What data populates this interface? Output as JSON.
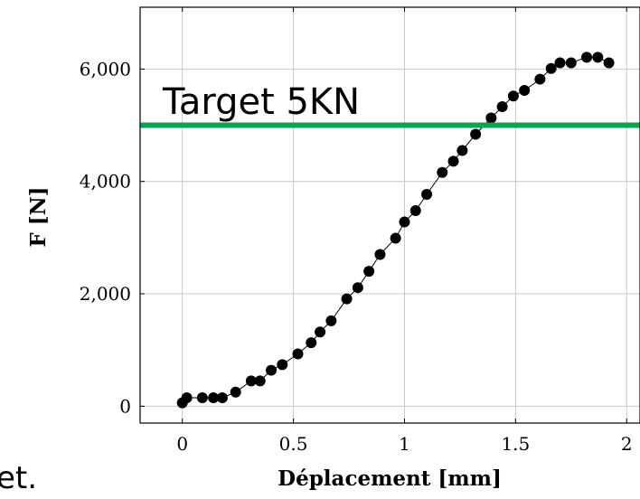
{
  "chart_data": {
    "type": "scatter",
    "xlabel": "Déplacement [mm]",
    "ylabel": "F [N]",
    "xlim": [
      -0.19,
      2.06
    ],
    "ylim": [
      -300,
      7100
    ],
    "grid": true,
    "x_ticks": [
      {
        "value": 0,
        "label": "0"
      },
      {
        "value": 0.5,
        "label": "0.5"
      },
      {
        "value": 1,
        "label": "1"
      },
      {
        "value": 1.5,
        "label": "1.5"
      },
      {
        "value": 2,
        "label": "2"
      }
    ],
    "y_ticks": [
      {
        "value": 0,
        "label": "0"
      },
      {
        "value": 2000,
        "label": "2,000"
      },
      {
        "value": 4000,
        "label": "4,000"
      },
      {
        "value": 6000,
        "label": "6,000"
      }
    ],
    "series": [
      {
        "marker": "circle",
        "connected": true,
        "color": "#000000",
        "points": [
          [
            0.0,
            60
          ],
          [
            0.02,
            150
          ],
          [
            0.09,
            150
          ],
          [
            0.14,
            150
          ],
          [
            0.18,
            150
          ],
          [
            0.24,
            250
          ],
          [
            0.31,
            450
          ],
          [
            0.35,
            450
          ],
          [
            0.4,
            640
          ],
          [
            0.45,
            740
          ],
          [
            0.52,
            930
          ],
          [
            0.58,
            1130
          ],
          [
            0.62,
            1320
          ],
          [
            0.67,
            1520
          ],
          [
            0.74,
            1910
          ],
          [
            0.79,
            2110
          ],
          [
            0.84,
            2400
          ],
          [
            0.89,
            2700
          ],
          [
            0.96,
            2990
          ],
          [
            1.0,
            3280
          ],
          [
            1.05,
            3480
          ],
          [
            1.1,
            3770
          ],
          [
            1.17,
            4160
          ],
          [
            1.22,
            4360
          ],
          [
            1.26,
            4550
          ],
          [
            1.32,
            4840
          ],
          [
            1.39,
            5130
          ],
          [
            1.44,
            5330
          ],
          [
            1.49,
            5520
          ],
          [
            1.54,
            5620
          ],
          [
            1.61,
            5820
          ],
          [
            1.66,
            6010
          ],
          [
            1.7,
            6110
          ],
          [
            1.75,
            6110
          ],
          [
            1.82,
            6210
          ],
          [
            1.87,
            6210
          ],
          [
            1.92,
            6110
          ]
        ]
      }
    ],
    "reference_line": {
      "y": 5000,
      "label": "Target 5KN",
      "color": "#00a651"
    }
  },
  "cut_text": "et."
}
